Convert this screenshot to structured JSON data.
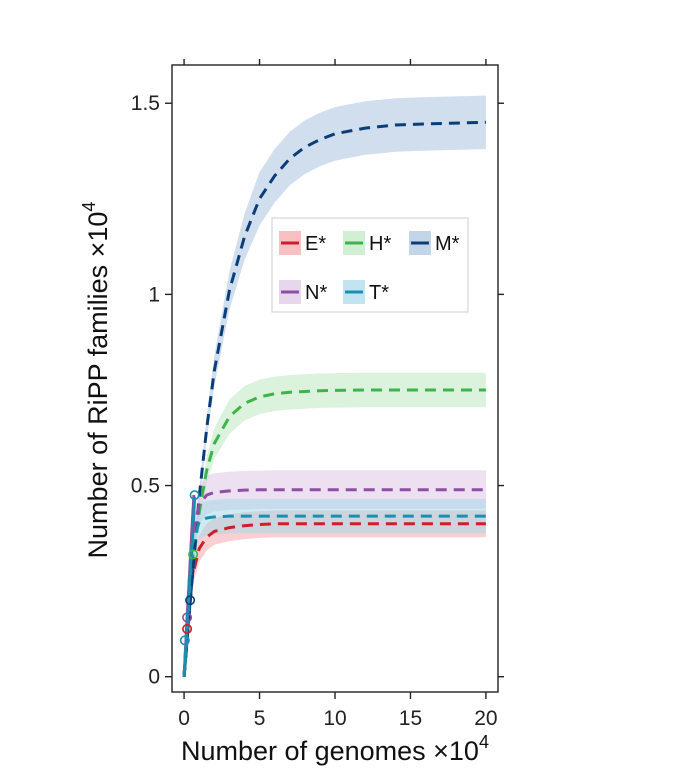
{
  "chart_data": {
    "type": "line",
    "title": "",
    "xlabel": "Number of genomes ×10",
    "xlabel_sup": "4",
    "ylabel": "Number of RiPP families ×10",
    "ylabel_sup": "4",
    "xlim": [
      -0.8,
      20.8
    ],
    "ylim": [
      -0.04,
      1.6
    ],
    "xticks": [
      0,
      5,
      10,
      15,
      20
    ],
    "xtick_labels": [
      "0",
      "5",
      "10",
      "15",
      "20"
    ],
    "yticks": [
      0,
      0.5,
      1,
      1.5
    ],
    "ytick_labels": [
      "0",
      "0.5",
      "1",
      "1.5"
    ],
    "grid": false,
    "legend_position": "top-right",
    "x": [
      0,
      0.5,
      1,
      1.5,
      2,
      3,
      4,
      5,
      6,
      7,
      8,
      9,
      10,
      12,
      14,
      16,
      18,
      20
    ],
    "series": [
      {
        "name": "E*",
        "color": "#cc1f2a",
        "band_color": "#f4a7ab",
        "observed_x": [
          0,
          0.1,
          0.2,
          0.3,
          0.45,
          0.6
        ],
        "observed_y": [
          0,
          0.06,
          0.12,
          0.17,
          0.23,
          0.28
        ],
        "marker": [
          0.2,
          0.125
        ],
        "y": [
          0.002,
          0.255,
          0.335,
          0.365,
          0.38,
          0.39,
          0.395,
          0.398,
          0.4,
          0.4,
          0.4,
          0.4,
          0.4,
          0.4,
          0.4,
          0.4,
          0.4,
          0.4
        ],
        "y_low": [
          0.002,
          0.23,
          0.3,
          0.33,
          0.345,
          0.355,
          0.36,
          0.363,
          0.365,
          0.365,
          0.365,
          0.365,
          0.365,
          0.365,
          0.365,
          0.365,
          0.365,
          0.365
        ],
        "y_high": [
          0.002,
          0.28,
          0.37,
          0.4,
          0.415,
          0.425,
          0.43,
          0.433,
          0.435,
          0.435,
          0.435,
          0.435,
          0.435,
          0.435,
          0.435,
          0.435,
          0.435,
          0.435
        ]
      },
      {
        "name": "H*",
        "color": "#3db44a",
        "band_color": "#bde8c1",
        "observed_x": [
          0,
          0.15,
          0.3,
          0.45,
          0.6
        ],
        "observed_y": [
          0,
          0.08,
          0.16,
          0.25,
          0.32
        ],
        "marker": [
          0.6,
          0.32
        ],
        "y": [
          0.002,
          0.26,
          0.43,
          0.54,
          0.61,
          0.68,
          0.715,
          0.732,
          0.74,
          0.744,
          0.746,
          0.748,
          0.749,
          0.75,
          0.75,
          0.75,
          0.75,
          0.75
        ],
        "y_low": [
          0.002,
          0.245,
          0.4,
          0.505,
          0.57,
          0.635,
          0.67,
          0.687,
          0.695,
          0.699,
          0.701,
          0.703,
          0.704,
          0.705,
          0.705,
          0.705,
          0.705,
          0.705
        ],
        "y_high": [
          0.002,
          0.275,
          0.46,
          0.575,
          0.65,
          0.725,
          0.76,
          0.777,
          0.785,
          0.789,
          0.791,
          0.793,
          0.794,
          0.795,
          0.795,
          0.795,
          0.795,
          0.795
        ]
      },
      {
        "name": "M*",
        "color": "#0b3e78",
        "band_color": "#a9c3df",
        "observed_x": [
          0,
          0.15,
          0.3,
          0.45,
          0.6
        ],
        "observed_y": [
          0,
          0.07,
          0.15,
          0.22,
          0.29
        ],
        "marker": [
          0.4,
          0.2
        ],
        "y": [
          0.002,
          0.24,
          0.47,
          0.65,
          0.8,
          1.01,
          1.15,
          1.25,
          1.31,
          1.355,
          1.385,
          1.405,
          1.42,
          1.435,
          1.443,
          1.446,
          1.448,
          1.45
        ],
        "y_low": [
          0.002,
          0.23,
          0.45,
          0.62,
          0.76,
          0.96,
          1.09,
          1.18,
          1.24,
          1.285,
          1.315,
          1.335,
          1.35,
          1.365,
          1.373,
          1.376,
          1.378,
          1.38
        ],
        "y_high": [
          0.002,
          0.25,
          0.49,
          0.68,
          0.84,
          1.06,
          1.21,
          1.32,
          1.38,
          1.425,
          1.455,
          1.475,
          1.49,
          1.505,
          1.513,
          1.516,
          1.518,
          1.52
        ]
      },
      {
        "name": "N*",
        "color": "#8e4ea6",
        "band_color": "#dcc6e6",
        "observed_x": [
          0,
          0.1,
          0.2,
          0.35,
          0.5,
          0.65
        ],
        "observed_y": [
          0,
          0.075,
          0.155,
          0.26,
          0.37,
          0.475
        ],
        "marker": [
          0.2,
          0.155
        ],
        "y": [
          0.002,
          0.36,
          0.45,
          0.475,
          0.482,
          0.486,
          0.488,
          0.489,
          0.489,
          0.489,
          0.489,
          0.489,
          0.489,
          0.489,
          0.489,
          0.489,
          0.489,
          0.489
        ],
        "y_low": [
          0.002,
          0.32,
          0.4,
          0.425,
          0.432,
          0.436,
          0.438,
          0.439,
          0.439,
          0.439,
          0.439,
          0.439,
          0.439,
          0.439,
          0.439,
          0.439,
          0.439,
          0.439
        ],
        "y_high": [
          0.002,
          0.4,
          0.5,
          0.525,
          0.532,
          0.536,
          0.538,
          0.539,
          0.54,
          0.54,
          0.54,
          0.54,
          0.54,
          0.54,
          0.54,
          0.54,
          0.54,
          0.54
        ]
      },
      {
        "name": "T*",
        "color": "#1a8fb0",
        "band_color": "#a8d9ea",
        "observed_x": [
          0,
          0.1,
          0.25,
          0.4,
          0.55,
          0.7
        ],
        "observed_y": [
          0,
          0.05,
          0.14,
          0.24,
          0.35,
          0.47
        ],
        "marker": [
          0.7,
          0.475
        ],
        "y": [
          0.002,
          0.34,
          0.405,
          0.415,
          0.418,
          0.42,
          0.42,
          0.42,
          0.42,
          0.42,
          0.42,
          0.42,
          0.42,
          0.42,
          0.42,
          0.42,
          0.42,
          0.42
        ],
        "y_low": [
          0.002,
          0.3,
          0.36,
          0.37,
          0.373,
          0.375,
          0.375,
          0.375,
          0.375,
          0.375,
          0.375,
          0.375,
          0.375,
          0.375,
          0.375,
          0.375,
          0.375,
          0.375
        ],
        "y_high": [
          0.002,
          0.38,
          0.45,
          0.46,
          0.463,
          0.465,
          0.465,
          0.465,
          0.465,
          0.465,
          0.465,
          0.465,
          0.465,
          0.465,
          0.465,
          0.465,
          0.465,
          0.465
        ]
      }
    ],
    "extra_markers": [
      {
        "series": "T*",
        "point": [
          0.05,
          0.095
        ]
      }
    ]
  }
}
